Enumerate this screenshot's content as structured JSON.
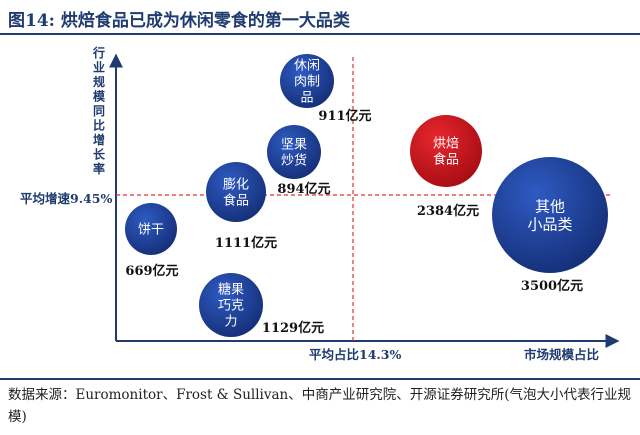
{
  "title": "图14: 烘焙食品已成为休闲零食的第一大品类",
  "source": "数据来源：Euromonitor、Frost & Sullivan、中商产业研究院、开源证券研究所(气泡大小代表行业规模)",
  "colors": {
    "axis": "#1f3b70",
    "bubble": "#1e3f95",
    "highlight": "#d0141b",
    "label_blue": "#1f3b70"
  },
  "chart_data": {
    "type": "scatter",
    "xlabel": "市场规模占比",
    "ylabel": "行业规模同比增长率",
    "reference_lines": {
      "x": {
        "label": "平均占比14.3%",
        "value": 14.3
      },
      "y": {
        "label": "平均增速9.45%",
        "value": 9.45
      }
    },
    "points": [
      {
        "name": "休闲肉制品",
        "lines": [
          "休闲",
          "肉制",
          "品"
        ],
        "value_label": "911亿元",
        "size": 911,
        "highlight": false
      },
      {
        "name": "坚果炒货",
        "lines": [
          "坚果",
          "炒货"
        ],
        "value_label": "894亿元",
        "size": 894,
        "highlight": false
      },
      {
        "name": "膨化食品",
        "lines": [
          "膨化",
          "食品"
        ],
        "value_label": "1111亿元",
        "size": 1111,
        "highlight": false
      },
      {
        "name": "饼干",
        "lines": [
          "饼干"
        ],
        "value_label": "669亿元",
        "size": 669,
        "highlight": false
      },
      {
        "name": "糖果巧克力",
        "lines": [
          "糖果",
          "巧克",
          "力"
        ],
        "value_label": "1129亿元",
        "size": 1129,
        "highlight": false
      },
      {
        "name": "烘焙食品",
        "lines": [
          "烘焙",
          "食品"
        ],
        "value_label": "2384亿元",
        "size": 2384,
        "highlight": true
      },
      {
        "name": "其他小品类",
        "lines": [
          "其他",
          "小品类"
        ],
        "value_label": "3500亿元",
        "size": 3500,
        "highlight": false
      }
    ]
  }
}
